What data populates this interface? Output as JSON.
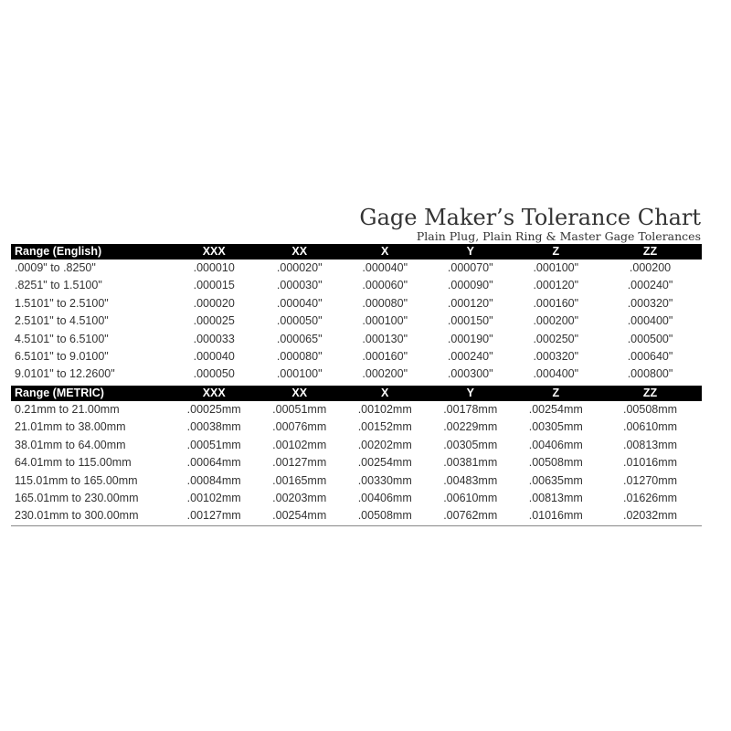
{
  "title": "Gage Maker’s Tolerance Chart",
  "subtitle": "Plain Plug, Plain Ring & Master Gage Tolerances",
  "english": {
    "headers": [
      "Range  (English)",
      "XXX",
      "XX",
      "X",
      "Y",
      "Z",
      "ZZ"
    ],
    "rows": [
      [
        ".0009\" to .8250\"",
        ".000010",
        ".000020\"",
        ".000040\"",
        ".000070\"",
        ".000100\"",
        ".000200"
      ],
      [
        ".8251\" to 1.5100\"",
        ".000015",
        ".000030\"",
        ".000060\"",
        ".000090\"",
        ".000120\"",
        ".000240\""
      ],
      [
        "1.5101\" to 2.5100\"",
        ".000020",
        ".000040\"",
        ".000080\"",
        ".000120\"",
        ".000160\"",
        ".000320\""
      ],
      [
        "2.5101\" to 4.5100\"",
        ".000025",
        ".000050\"",
        ".000100\"",
        ".000150\"",
        ".000200\"",
        ".000400\""
      ],
      [
        "4.5101\" to 6.5100\"",
        ".000033",
        ".000065\"",
        ".000130\"",
        ".000190\"",
        ".000250\"",
        ".000500\""
      ],
      [
        "6.5101\" to 9.0100\"",
        ".000040",
        ".000080\"",
        ".000160\"",
        ".000240\"",
        ".000320\"",
        ".000640\""
      ],
      [
        "9.0101\" to 12.2600\"",
        ".000050",
        ".000100\"",
        ".000200\"",
        ".000300\"",
        ".000400\"",
        ".000800\""
      ]
    ]
  },
  "metric": {
    "headers": [
      "Range  (METRIC)",
      "XXX",
      "XX",
      "X",
      "Y",
      "Z",
      "ZZ"
    ],
    "rows": [
      [
        "0.21mm to 21.00mm",
        ".00025mm",
        ".00051mm",
        ".00102mm",
        ".00178mm",
        ".00254mm",
        ".00508mm"
      ],
      [
        "21.01mm to 38.00mm",
        ".00038mm",
        ".00076mm",
        ".00152mm",
        ".00229mm",
        ".00305mm",
        ".00610mm"
      ],
      [
        "38.01mm to 64.00mm",
        ".00051mm",
        ".00102mm",
        ".00202mm",
        ".00305mm",
        ".00406mm",
        ".00813mm"
      ],
      [
        "64.01mm to 115.00mm",
        ".00064mm",
        ".00127mm",
        ".00254mm",
        ".00381mm",
        ".00508mm",
        ".01016mm"
      ],
      [
        "115.01mm to 165.00mm",
        ".00084mm",
        ".00165mm",
        ".00330mm",
        ".00483mm",
        ".00635mm",
        ".01270mm"
      ],
      [
        "165.01mm to 230.00mm",
        ".00102mm",
        ".00203mm",
        ".00406mm",
        ".00610mm",
        ".00813mm",
        ".01626mm"
      ],
      [
        "230.01mm to 300.00mm",
        ".00127mm",
        ".00254mm",
        ".00508mm",
        ".00762mm",
        ".01016mm",
        ".02032mm"
      ]
    ]
  }
}
